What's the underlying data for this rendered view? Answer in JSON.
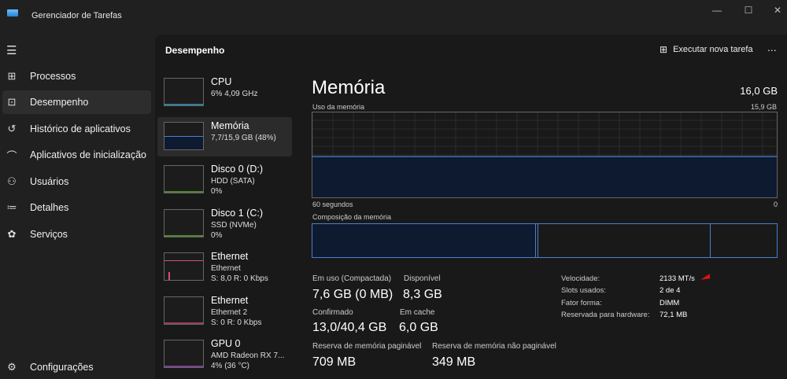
{
  "window": {
    "title": "Gerenciador de Tarefas",
    "controls": [
      "minimize",
      "maximize",
      "close"
    ]
  },
  "sidebar": {
    "menu_icon": "hamburger-icon",
    "items": [
      {
        "label": "Processos",
        "icon": "grid-icon"
      },
      {
        "label": "Desempenho",
        "icon": "performance-icon",
        "active": true
      },
      {
        "label": "Histórico de aplicativos",
        "icon": "history-icon"
      },
      {
        "label": "Aplicativos de inicialização",
        "icon": "speedometer-icon"
      },
      {
        "label": "Usuários",
        "icon": "users-icon"
      },
      {
        "label": "Detalhes",
        "icon": "list-icon"
      },
      {
        "label": "Serviços",
        "icon": "puzzle-icon"
      }
    ],
    "settings": {
      "label": "Configurações",
      "icon": "gear-icon"
    }
  },
  "header": {
    "title": "Desempenho",
    "run_task": "Executar nova tarefa",
    "more": "..."
  },
  "devices": [
    {
      "name": "CPU",
      "line1": "6% 4,09 GHz",
      "line2": "",
      "color": "#3fa9d6"
    },
    {
      "name": "Memória",
      "line1": "7,7/15,9 GB (48%)",
      "line2": "",
      "color": "#4a7fd0",
      "selected": true,
      "fill_percent": 48
    },
    {
      "name": "Disco 0 (D:)",
      "line1": "HDD (SATA)",
      "line2": "0%",
      "color": "#6bb33a"
    },
    {
      "name": "Disco 1 (C:)",
      "line1": "SSD (NVMe)",
      "line2": "0%",
      "color": "#6bb33a"
    },
    {
      "name": "Ethernet",
      "line1": "Ethernet",
      "line2": "S: 8,0 R: 0 Kbps",
      "color": "#d0507a"
    },
    {
      "name": "Ethernet",
      "line1": "Ethernet 2",
      "line2": "S: 0 R: 0 Kbps",
      "color": "#d0507a"
    },
    {
      "name": "GPU 0",
      "line1": "AMD Radeon RX 7...",
      "line2": "4% (36 °C)",
      "color": "#a050c0"
    }
  ],
  "memory": {
    "title": "Memória",
    "total": "16,0 GB",
    "usage_label": "Uso da memória",
    "usage_max": "15,9 GB",
    "usage_percent": 48,
    "time_left": "60 segundos",
    "time_right": "0",
    "composition_label": "Composição da memória",
    "stats": {
      "in_use_label": "Em uso (Compactada)",
      "in_use": "7,6 GB (0 MB)",
      "available_label": "Disponível",
      "available": "8,3 GB",
      "committed_label": "Confirmado",
      "committed": "13,0/40,4 GB",
      "cached_label": "Em cache",
      "cached": "6,0 GB",
      "paged_label": "Reserva de memória paginável",
      "paged": "709 MB",
      "nonpaged_label": "Reserva de memória não paginável",
      "nonpaged": "349 MB"
    },
    "specs": [
      {
        "k": "Velocidade:",
        "v": "2133 MT/s"
      },
      {
        "k": "Slots usados:",
        "v": "2 de 4"
      },
      {
        "k": "Fator forma:",
        "v": "DIMM"
      },
      {
        "k": "Reservada para hardware:",
        "v": "72,1 MB"
      }
    ]
  }
}
